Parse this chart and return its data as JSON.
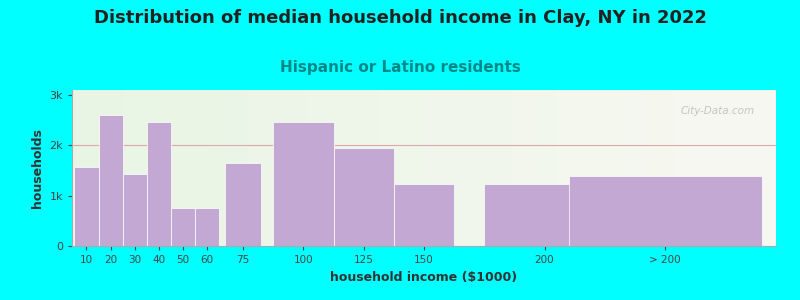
{
  "title": "Distribution of median household income in Clay, NY in 2022",
  "subtitle": "Hispanic or Latino residents",
  "xlabel": "household income ($1000)",
  "ylabel": "households",
  "background_color": "#00FFFF",
  "plot_bg_left": "#e8f5e4",
  "plot_bg_right": "#f8f8f2",
  "bar_color": "#C4A8D4",
  "categories": [
    "10",
    "20",
    "30",
    "40",
    "50",
    "60",
    "75",
    "100",
    "125",
    "150",
    "200",
    "> 200"
  ],
  "values": [
    1560,
    2600,
    1430,
    2470,
    760,
    760,
    1640,
    2470,
    1940,
    1230,
    1230,
    1400
  ],
  "bar_centers": [
    10,
    20,
    30,
    40,
    50,
    60,
    75,
    100,
    125,
    150,
    200,
    250
  ],
  "bar_widths": [
    10,
    10,
    10,
    10,
    10,
    10,
    15,
    25,
    25,
    25,
    50,
    80
  ],
  "ylim": [
    0,
    3100
  ],
  "xlim_left": 4,
  "xlim_right": 296,
  "yticks": [
    0,
    1000,
    2000,
    3000
  ],
  "ytick_labels": [
    "0",
    "1k",
    "2k",
    "3k"
  ],
  "title_fontsize": 13,
  "subtitle_fontsize": 11,
  "subtitle_color": "#008888",
  "axis_label_fontsize": 9,
  "watermark": "City-Data.com",
  "hline_y": 2000,
  "hline_color": "#ddaaaa"
}
